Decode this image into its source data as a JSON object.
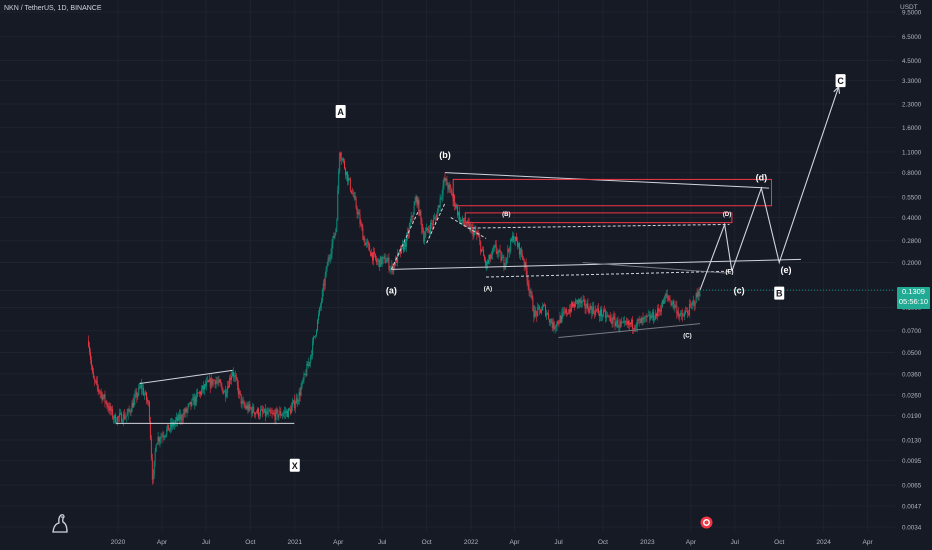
{
  "header": {
    "symbol_line": "NKN / TetherUS, 1D, BINANCE"
  },
  "axis": {
    "currency": "USDT"
  },
  "price_tag": {
    "price": "0.1309",
    "countdown": "05:56:10"
  },
  "chart_data": {
    "type": "candlestick",
    "title": "NKN / TetherUS, 1D, BINANCE",
    "y_scale": "log",
    "ylabel": "USDT",
    "y_ticks": [
      "9.5000",
      "6.5000",
      "4.5000",
      "3.3000",
      "2.3000",
      "1.6000",
      "1.1000",
      "0.8000",
      "0.5500",
      "0.4000",
      "0.2800",
      "0.2000",
      "0.1300",
      "0.1000",
      "0.0700",
      "0.0500",
      "0.0360",
      "0.0260",
      "0.0190",
      "0.0130",
      "0.0095",
      "0.0065",
      "0.0047",
      "0.0034"
    ],
    "x_ticks": [
      "2020",
      "Apr",
      "Jul",
      "Oct",
      "2021",
      "Apr",
      "Jul",
      "Oct",
      "2022",
      "Apr",
      "Jul",
      "Oct",
      "2023",
      "Apr",
      "Jul",
      "Oct",
      "2024",
      "Apr"
    ],
    "ylim": [
      0.0034,
      9.5
    ],
    "last_price": 0.1309,
    "price_path": [
      [
        "2019-11-01",
        0.06
      ],
      [
        "2019-11-10",
        0.033
      ],
      [
        "2019-12-05",
        0.024
      ],
      [
        "2019-12-25",
        0.018
      ],
      [
        "2020-01-20",
        0.019
      ],
      [
        "2020-02-18",
        0.03
      ],
      [
        "2020-03-05",
        0.022
      ],
      [
        "2020-03-13",
        0.0065
      ],
      [
        "2020-03-20",
        0.013
      ],
      [
        "2020-04-20",
        0.016
      ],
      [
        "2020-05-20",
        0.02
      ],
      [
        "2020-06-15",
        0.026
      ],
      [
        "2020-07-01",
        0.03
      ],
      [
        "2020-07-20",
        0.033
      ],
      [
        "2020-08-10",
        0.027
      ],
      [
        "2020-08-25",
        0.038
      ],
      [
        "2020-09-15",
        0.022
      ],
      [
        "2020-10-15",
        0.02
      ],
      [
        "2020-11-15",
        0.019
      ],
      [
        "2020-12-20",
        0.02
      ],
      [
        "2021-01-10",
        0.026
      ],
      [
        "2021-02-01",
        0.045
      ],
      [
        "2021-02-20",
        0.09
      ],
      [
        "2021-03-10",
        0.2
      ],
      [
        "2021-03-28",
        0.35
      ],
      [
        "2021-04-04",
        1.15
      ],
      [
        "2021-04-20",
        0.75
      ],
      [
        "2021-05-10",
        0.45
      ],
      [
        "2021-05-25",
        0.28
      ],
      [
        "2021-06-20",
        0.2
      ],
      [
        "2021-07-10",
        0.21
      ],
      [
        "2021-07-20",
        0.18
      ],
      [
        "2021-08-20",
        0.28
      ],
      [
        "2021-09-10",
        0.55
      ],
      [
        "2021-09-25",
        0.3
      ],
      [
        "2021-10-20",
        0.4
      ],
      [
        "2021-11-07",
        0.72
      ],
      [
        "2021-11-25",
        0.55
      ],
      [
        "2021-12-10",
        0.38
      ],
      [
        "2021-12-25",
        0.35
      ],
      [
        "2022-01-15",
        0.3
      ],
      [
        "2022-02-01",
        0.19
      ],
      [
        "2022-02-20",
        0.25
      ],
      [
        "2022-03-10",
        0.2
      ],
      [
        "2022-03-30",
        0.3
      ],
      [
        "2022-04-20",
        0.21
      ],
      [
        "2022-05-12",
        0.09
      ],
      [
        "2022-06-01",
        0.1
      ],
      [
        "2022-06-20",
        0.075
      ],
      [
        "2022-07-20",
        0.095
      ],
      [
        "2022-08-10",
        0.11
      ],
      [
        "2022-09-01",
        0.1
      ],
      [
        "2022-10-01",
        0.09
      ],
      [
        "2022-11-10",
        0.075
      ],
      [
        "2022-12-20",
        0.08
      ],
      [
        "2023-01-20",
        0.09
      ],
      [
        "2023-02-10",
        0.12
      ],
      [
        "2023-03-01",
        0.1
      ],
      [
        "2023-03-12",
        0.085
      ],
      [
        "2023-04-01",
        0.1
      ],
      [
        "2023-04-20",
        0.1309
      ]
    ],
    "annotations": [
      {
        "label": "A",
        "date": "2021-04-06",
        "price": 2.05,
        "boxed": true
      },
      {
        "label": "X",
        "date": "2021-01-01",
        "price": 0.0088,
        "boxed": true
      },
      {
        "label": "B",
        "date": "2023-10-01",
        "price": 0.125,
        "boxed": true
      },
      {
        "label": "C",
        "date": "2024-02-05",
        "price": 3.3,
        "boxed": true
      },
      {
        "label": "(a)",
        "date": "2021-07-20",
        "price": 0.13,
        "boxed": false
      },
      {
        "label": "(b)",
        "date": "2021-11-08",
        "price": 1.05,
        "boxed": false
      },
      {
        "label": "(c)",
        "date": "2023-07-10",
        "price": 0.13,
        "boxed": false
      },
      {
        "label": "(d)",
        "date": "2023-08-25",
        "price": 0.74,
        "boxed": false
      },
      {
        "label": "(e)",
        "date": "2023-10-15",
        "price": 0.178,
        "boxed": false
      },
      {
        "label": "(A)",
        "date": "2022-02-05",
        "price": 0.136,
        "boxed": false
      },
      {
        "label": "(B)",
        "date": "2022-03-15",
        "price": 0.43,
        "boxed": false
      },
      {
        "label": "(C)",
        "date": "2023-03-25",
        "price": 0.066,
        "boxed": false
      },
      {
        "label": "(D)",
        "date": "2023-06-15",
        "price": 0.43,
        "boxed": false
      },
      {
        "label": "(E)",
        "date": "2023-06-20",
        "price": 0.177,
        "boxed": false
      }
    ],
    "lines": [
      {
        "from": [
          "2019-12-28",
          0.0168
        ],
        "to": [
          "2020-12-31",
          0.0168
        ],
        "style": "solid"
      },
      {
        "from": [
          "2020-02-15",
          0.031
        ],
        "to": [
          "2020-08-25",
          0.038
        ],
        "style": "solid"
      },
      {
        "from": [
          "2021-07-20",
          0.18
        ],
        "to": [
          "2023-11-15",
          0.21
        ],
        "style": "solid"
      },
      {
        "from": [
          "2021-11-08",
          0.8
        ],
        "to": [
          "2023-09-10",
          0.63
        ],
        "style": "solid"
      },
      {
        "from": [
          "2022-02-01",
          0.16
        ],
        "to": [
          "2023-06-20",
          0.175
        ],
        "style": "dashed"
      },
      {
        "from": [
          "2021-07-20",
          0.18
        ],
        "to": [
          "2021-09-15",
          0.45
        ],
        "style": "dashed"
      },
      {
        "from": [
          "2021-10-01",
          0.27
        ],
        "to": [
          "2021-11-08",
          0.5
        ],
        "style": "dashed"
      },
      {
        "from": [
          "2021-11-20",
          0.4
        ],
        "to": [
          "2022-02-01",
          0.29
        ],
        "style": "dashed"
      },
      {
        "from": [
          "2021-12-25",
          0.34
        ],
        "to": [
          "2023-06-20",
          0.36
        ],
        "style": "dashed"
      },
      {
        "from": [
          "2022-07-01",
          0.063
        ],
        "to": [
          "2023-04-20",
          0.078
        ],
        "style": "solid",
        "color": "#787b86"
      },
      {
        "from": [
          "2022-08-20",
          0.2
        ],
        "to": [
          "2023-06-15",
          0.17
        ],
        "style": "solid",
        "color": "#787b86"
      }
    ],
    "boxes": [
      {
        "from": [
          "2021-11-25",
          0.72
        ],
        "to": [
          "2023-09-15",
          0.48
        ],
        "color": "#f23645"
      },
      {
        "from": [
          "2021-12-20",
          0.43
        ],
        "to": [
          "2023-06-25",
          0.37
        ],
        "color": "#f23645"
      }
    ],
    "projection": [
      [
        "2023-04-20",
        0.1309
      ],
      [
        "2023-06-10",
        0.36
      ],
      [
        "2023-06-25",
        0.175
      ],
      [
        "2023-08-25",
        0.63
      ],
      [
        "2023-10-01",
        0.2
      ],
      [
        "2024-02-01",
        3.0
      ]
    ]
  }
}
